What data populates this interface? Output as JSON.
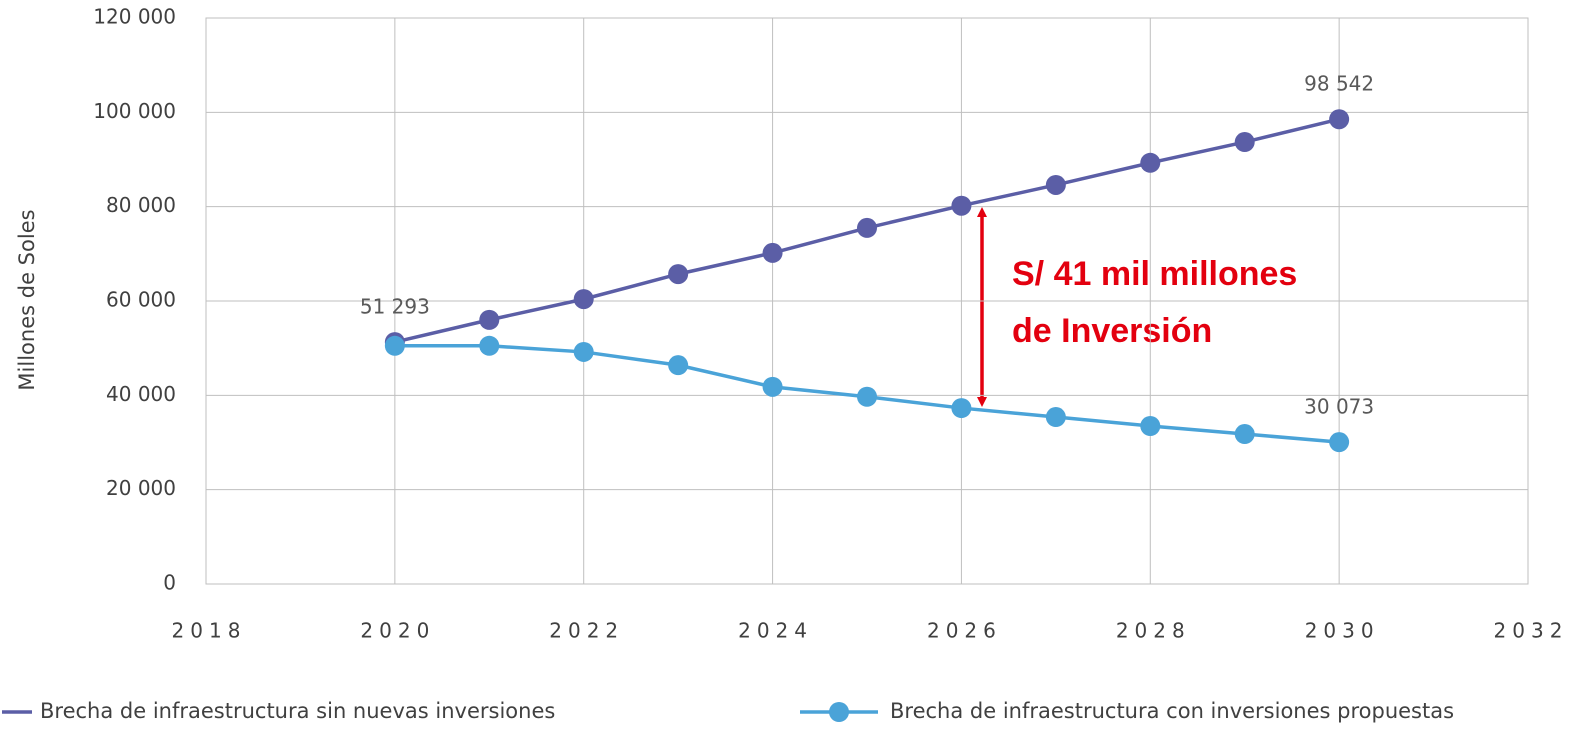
{
  "chart_data": {
    "type": "line",
    "y_label": "Millones de Soles",
    "x": [
      2020,
      2021,
      2022,
      2023,
      2024,
      2025,
      2026,
      2027,
      2028,
      2029,
      2030
    ],
    "series": [
      {
        "name": "Brecha de infraestructura sin nuevas inversiones",
        "color": "#5b5ea6",
        "legend_marker": false,
        "values": [
          51293,
          56000,
          60400,
          65700,
          70200,
          75500,
          80200,
          84600,
          89300,
          93700,
          98542
        ],
        "value_labels": [
          "51 293",
          null,
          null,
          null,
          null,
          null,
          null,
          null,
          null,
          null,
          "98 542"
        ]
      },
      {
        "name": "Brecha de infraestructura con inversiones propuestas",
        "color": "#4aa3d8",
        "legend_marker": true,
        "values": [
          50500,
          50500,
          49200,
          46400,
          41800,
          39700,
          37300,
          35400,
          33500,
          31800,
          30073
        ],
        "value_labels": [
          null,
          null,
          null,
          null,
          null,
          null,
          null,
          null,
          null,
          null,
          "30 073"
        ]
      }
    ],
    "xlim": [
      2018,
      2032
    ],
    "xticks": [
      2018,
      2020,
      2022,
      2024,
      2026,
      2028,
      2030,
      2032
    ],
    "ylim": [
      0,
      120000
    ],
    "yticks": [
      0,
      {
        "value": 20000,
        "label": "20 000"
      },
      {
        "value": 40000,
        "label": "40 000"
      },
      {
        "value": 60000,
        "label": "60 000"
      },
      {
        "value": 80000,
        "label": "80 000"
      },
      {
        "value": 100000,
        "label": "100 000"
      },
      {
        "value": 120000,
        "label": "120 000"
      }
    ],
    "grid": true,
    "annotation": [
      "S/ 41 mil millones",
      "de Inversión"
    ]
  }
}
